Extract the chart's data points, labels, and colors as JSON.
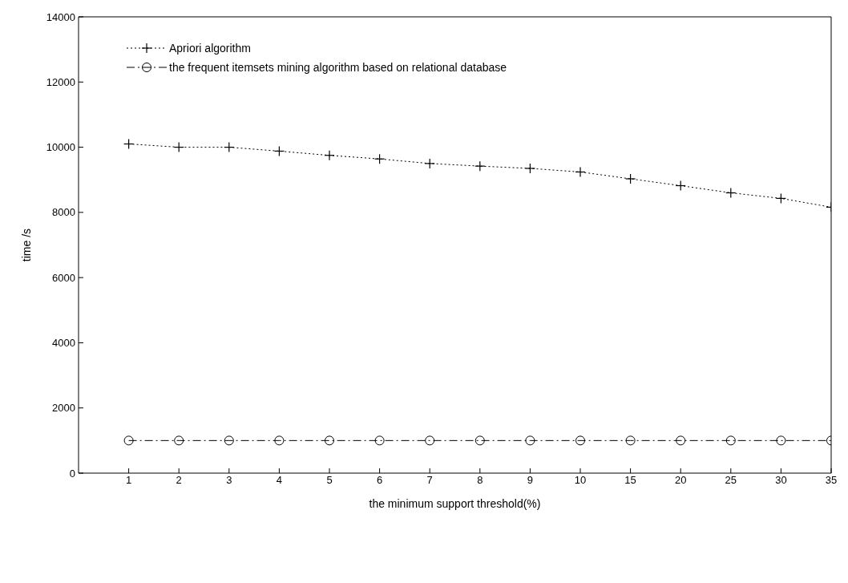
{
  "chart_data": {
    "type": "line",
    "xlabel": "the minimum support threshold(%)",
    "ylabel": "time /s",
    "categories": [
      "1",
      "2",
      "3",
      "4",
      "5",
      "6",
      "7",
      "8",
      "9",
      "10",
      "15",
      "20",
      "25",
      "30",
      "35"
    ],
    "series": [
      {
        "name": "Apriori algorithm",
        "color": "#000000",
        "marker": "cross",
        "line_style": "dotted",
        "values": [
          10100,
          10000,
          10000,
          9880,
          9750,
          9640,
          9500,
          9420,
          9350,
          9240,
          9030,
          8820,
          8600,
          8430,
          8160
        ]
      },
      {
        "name": "the frequent itemsets mining algorithm based on relational database",
        "color": "#000000",
        "marker": "circle",
        "line_style": "dashed",
        "values": [
          1000,
          1000,
          1000,
          1000,
          1000,
          1000,
          1000,
          1000,
          1000,
          1000,
          1000,
          1000,
          1000,
          1000,
          1000
        ]
      }
    ],
    "ylim": [
      0,
      14000
    ],
    "yticks": [
      0,
      2000,
      4000,
      6000,
      8000,
      10000,
      12000,
      14000
    ],
    "legend": "top left"
  }
}
